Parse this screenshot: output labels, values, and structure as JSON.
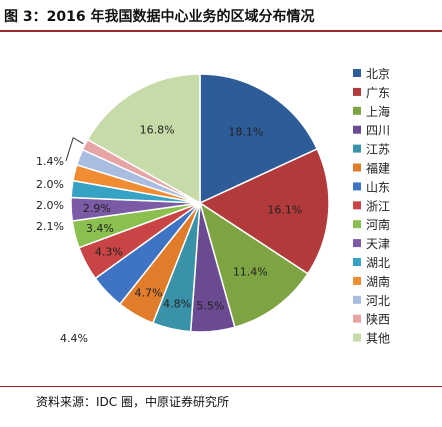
{
  "header": {
    "title": "图 3：2016 年我国数据中心业务的区域分布情况"
  },
  "footer": {
    "source": "资料来源：IDC 圈，中原证券研究所"
  },
  "chart_data": {
    "type": "pie",
    "title": "",
    "categories": [
      "北京",
      "广东",
      "上海",
      "四川",
      "江苏",
      "福建",
      "山东",
      "浙江",
      "河南",
      "天津",
      "湖北",
      "湖南",
      "河北",
      "陕西",
      "其他"
    ],
    "values": [
      18.1,
      16.1,
      11.4,
      5.5,
      4.8,
      4.7,
      4.4,
      4.3,
      3.4,
      2.9,
      2.1,
      2.0,
      2.0,
      1.4,
      16.8
    ],
    "labels": [
      "18.1%",
      "16.1%",
      "11.4%",
      "5.5%",
      "4.8%",
      "4.7%",
      "4.4%",
      "4.3%",
      "3.4%",
      "2.9%",
      "2.1%",
      "2.0%",
      "2.0%",
      "1.4%",
      "16.8%"
    ],
    "colors": [
      "#2e5c99",
      "#b23a3a",
      "#7ea342",
      "#6a4a91",
      "#3a92a8",
      "#e07c2a",
      "#3f74c4",
      "#c94444",
      "#8bbf4f",
      "#7b5aa6",
      "#36a3c4",
      "#f08c32",
      "#a9bde0",
      "#e6a4a4",
      "#c6dba8"
    ],
    "start_angle": "12 o'clock",
    "direction": "clockwise",
    "legend_placement": "right"
  }
}
